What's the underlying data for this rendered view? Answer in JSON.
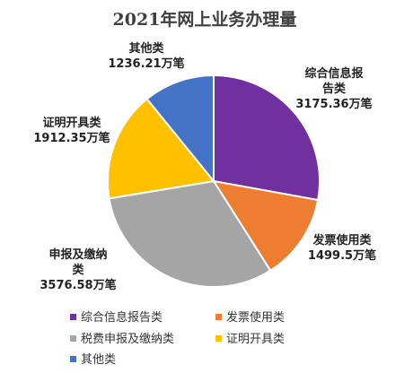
{
  "chart_data": {
    "type": "pie",
    "title": "2021年网上业务办理量",
    "unit": "万笔",
    "slices": [
      {
        "category": "综合信息报告类",
        "label_lines": [
          "综合信息报",
          "告类",
          "3175.36万笔"
        ],
        "value": 3175.36,
        "color": "#7030a0"
      },
      {
        "category": "发票使用类",
        "label_lines": [
          "发票使用类",
          "1499.5万笔"
        ],
        "value": 1499.5,
        "color": "#ed7d31"
      },
      {
        "category": "税费申报及缴纳类",
        "label_lines": [
          "申报及缴纳",
          "类",
          "3576.58万笔"
        ],
        "value": 3576.58,
        "color": "#a5a5a5"
      },
      {
        "category": "证明开具类",
        "label_lines": [
          "证明开具类",
          "1912.35万笔"
        ],
        "value": 1912.35,
        "color": "#ffc000"
      },
      {
        "category": "其他类",
        "label_lines": [
          "其他类",
          "1236.21万笔"
        ],
        "value": 1236.21,
        "color": "#4472c4"
      }
    ],
    "legend": [
      "综合信息报告类",
      "发票使用类",
      "税费申报及缴纳类",
      "证明开具类",
      "其他类"
    ],
    "legend_position": "bottom"
  }
}
